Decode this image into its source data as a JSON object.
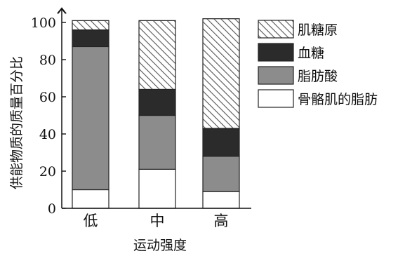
{
  "chart_data": {
    "type": "bar",
    "stacked": true,
    "xlabel": "运动强度",
    "ylabel": "供能物质的质量百分比",
    "ylim": [
      0,
      100
    ],
    "yticks": [
      0,
      20,
      40,
      60,
      80,
      100
    ],
    "categories": [
      "低",
      "中",
      "高"
    ],
    "series": [
      {
        "name": "骨骼肌的脂肪",
        "values": [
          10,
          21,
          9
        ],
        "fill": "white"
      },
      {
        "name": "脂肪酸",
        "values": [
          77,
          29,
          19
        ],
        "fill": "gray"
      },
      {
        "name": "血糖",
        "values": [
          9,
          14,
          15
        ],
        "fill": "dark"
      },
      {
        "name": "肌糖原",
        "values": [
          5,
          37,
          59
        ],
        "fill": "hatch"
      }
    ],
    "legend": [
      "肌糖原",
      "血糖",
      "脂肪酸",
      "骨骼肌的脂肪"
    ],
    "legend_position": "right",
    "colors": {
      "dark": "#2b2b2b",
      "gray": "#8c8c8c",
      "white": "#ffffff",
      "hatch_line": "#555555",
      "axis": "#111111"
    }
  }
}
